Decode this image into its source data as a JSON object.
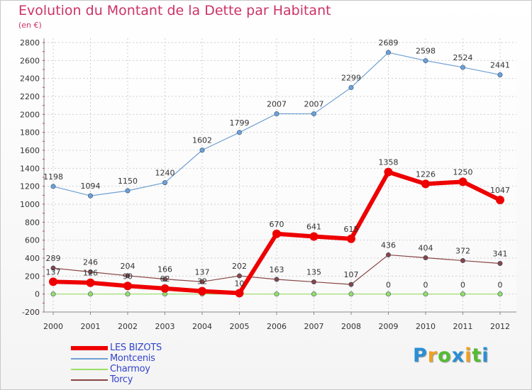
{
  "chart_data": {
    "type": "line",
    "title": "Evolution du Montant de la Dette par Habitant",
    "subtitle": "(en €)",
    "x": [
      2000,
      2001,
      2002,
      2003,
      2004,
      2005,
      2006,
      2007,
      2008,
      2009,
      2010,
      2011,
      2012
    ],
    "ylim": [
      -200,
      2800
    ],
    "yticks": [
      -200,
      0,
      200,
      400,
      600,
      800,
      1000,
      1200,
      1400,
      1600,
      1800,
      2000,
      2200,
      2400,
      2600,
      2800
    ],
    "grid": true,
    "legend_position": "bottom-left",
    "series": [
      {
        "name": "LES BIZOTS",
        "color": "#ee0000",
        "values": [
          137,
          126,
          90,
          62,
          32,
          10,
          670,
          641,
          615,
          1358,
          1226,
          1250,
          1047
        ],
        "labels": [
          "137",
          "126",
          "90",
          "62",
          "32",
          "10",
          "670",
          "641",
          "615",
          "1358",
          "1226",
          "1250",
          "1047"
        ]
      },
      {
        "name": "Montcenis",
        "color": "#6fa0d4",
        "values": [
          1198,
          1094,
          1150,
          1240,
          1602,
          1799,
          2007,
          2007,
          2299,
          2689,
          2598,
          2524,
          2441
        ],
        "labels": [
          "1198",
          "1094",
          "1150",
          "1240",
          "1602",
          "1799",
          "2007",
          "2007",
          "2299",
          "2689",
          "2598",
          "2524",
          "2441"
        ]
      },
      {
        "name": "Charmoy",
        "color": "#99dd66",
        "values": [
          0,
          0,
          0,
          0,
          0,
          0,
          0,
          0,
          0,
          0,
          0,
          0,
          0
        ],
        "labels": [
          "0",
          "0",
          "0",
          "0",
          "0",
          "0",
          "0",
          "0",
          "0",
          "0",
          "0",
          "0",
          "0"
        ]
      },
      {
        "name": "Torcy",
        "color": "#884444",
        "values": [
          289,
          246,
          204,
          166,
          137,
          202,
          163,
          135,
          107,
          436,
          404,
          372,
          341
        ],
        "labels": [
          "289",
          "246",
          "204",
          "166",
          "137",
          "202",
          "163",
          "135",
          "107",
          "436",
          "404",
          "372",
          "341"
        ]
      }
    ]
  },
  "logo": {
    "letters": [
      "P",
      "r",
      "o",
      "x",
      "i",
      "t",
      "i"
    ],
    "colors": [
      "#2a8fd6",
      "#f0a020",
      "#55bb33",
      "#2a8fd6",
      "#f0a020",
      "#55bb33",
      "#2a8fd6"
    ]
  }
}
